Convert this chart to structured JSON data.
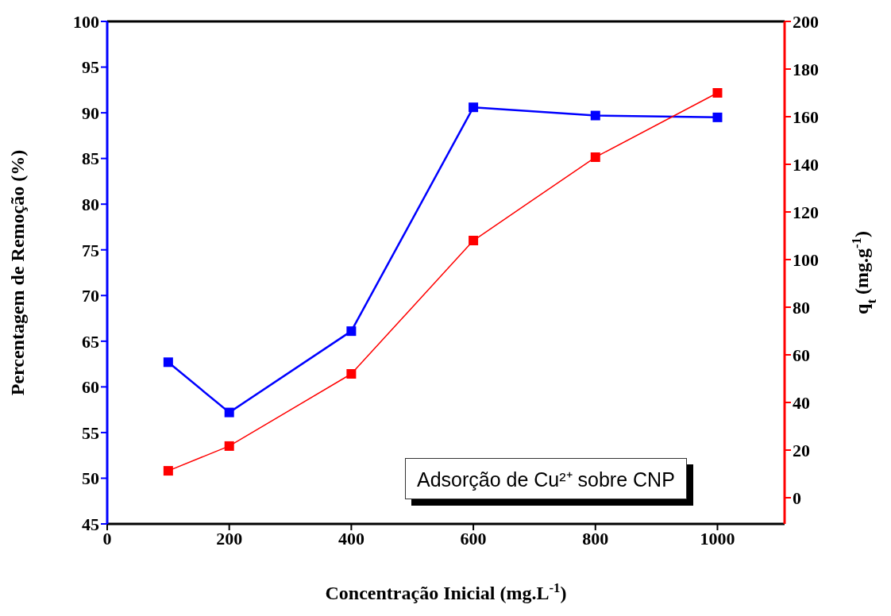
{
  "chart_data": {
    "type": "line",
    "xlabel": "Concentração Inicial (mg.L$^{-1}$)",
    "ylabel": "Percentagem de Remoção (%)",
    "y2label": "q$_{t}$ (mg.g$^{-1}$)",
    "x": [
      100,
      200,
      400,
      600,
      800,
      1000
    ],
    "series": [
      {
        "color": "#0000ff",
        "values": [
          62.7,
          57.2,
          66.1,
          90.6,
          89.7,
          89.5
        ]
      },
      {
        "color": "#ff0000",
        "axis": "y2",
        "values": [
          11.3,
          21.7,
          52,
          108,
          143,
          170
        ]
      }
    ],
    "xlim": [
      0,
      1110
    ],
    "xticks": [
      0,
      200,
      400,
      600,
      800,
      1000
    ],
    "ylim": [
      45,
      100
    ],
    "yticks": [
      45,
      50,
      55,
      60,
      65,
      70,
      75,
      80,
      85,
      90,
      95,
      100
    ],
    "y2lim": [
      -11,
      200
    ],
    "y2ticks": [
      0,
      20,
      40,
      60,
      80,
      100,
      120,
      140,
      160,
      180,
      200
    ],
    "annotations": [
      "Adsorção de Cu²⁺ sobre CNP"
    ],
    "marker": "square",
    "line_style": "solid",
    "grid": false,
    "legend": false
  }
}
